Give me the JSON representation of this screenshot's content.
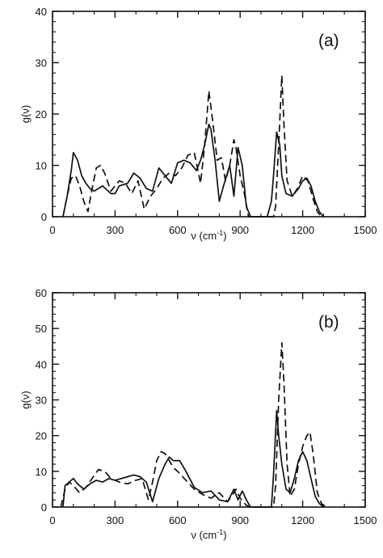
{
  "chart_data": [
    {
      "type": "line",
      "panel_label": "(a)",
      "xlabel": "ν (cm",
      "xlabel_sup": "-1",
      "xlabel_end": ")",
      "ylabel": "g(ν)",
      "xlim": [
        0,
        1500
      ],
      "ylim": [
        0,
        40
      ],
      "xticks": [
        0,
        300,
        600,
        900,
        1200,
        1500
      ],
      "yticks": [
        0,
        10,
        20,
        30,
        40
      ],
      "grid": false,
      "series": [
        {
          "style": "solid",
          "x": [
            50,
            70,
            90,
            100,
            120,
            140,
            160,
            180,
            200,
            240,
            280,
            300,
            320,
            360,
            390,
            420,
            450,
            480,
            510,
            540,
            570,
            600,
            630,
            660,
            690,
            710,
            730,
            750,
            760,
            780,
            800,
            820,
            850,
            870,
            890,
            910,
            930,
            950,
            1030,
            1050,
            1060,
            1075,
            1090,
            1100,
            1120,
            1150,
            1180,
            1200,
            1220,
            1240,
            1260,
            1280,
            1300
          ],
          "y": [
            0,
            4,
            9,
            12.5,
            11,
            8,
            6.5,
            5.5,
            5,
            6,
            4.5,
            4.5,
            6,
            6.5,
            8.5,
            7.5,
            5.5,
            5,
            9.5,
            8,
            6.5,
            10.5,
            11,
            10.5,
            9,
            11,
            14,
            18,
            17,
            11,
            3,
            6,
            10,
            4,
            13.5,
            10,
            2,
            0,
            0,
            3,
            8,
            16.5,
            14,
            8,
            4.5,
            4,
            5.5,
            7,
            7.5,
            6,
            3,
            1,
            0
          ]
        },
        {
          "style": "dashed",
          "x": [
            50,
            70,
            90,
            110,
            130,
            150,
            170,
            190,
            210,
            230,
            250,
            280,
            300,
            320,
            350,
            380,
            410,
            440,
            470,
            500,
            530,
            560,
            590,
            620,
            650,
            680,
            710,
            730,
            750,
            770,
            790,
            810,
            830,
            850,
            870,
            880,
            900,
            920,
            940,
            960,
            1040,
            1060,
            1070,
            1085,
            1100,
            1110,
            1125,
            1150,
            1175,
            1200,
            1225,
            1250,
            1270,
            1290,
            1300
          ],
          "y": [
            0,
            4,
            7.5,
            8,
            6,
            3,
            1,
            5.5,
            9.5,
            10,
            8.5,
            5,
            6,
            7,
            6.5,
            4.5,
            7,
            1.5,
            4,
            5.5,
            7.5,
            8.5,
            8,
            9.5,
            12,
            12.5,
            6.5,
            14,
            24.5,
            18,
            11,
            11.5,
            7,
            10,
            15,
            13.5,
            8,
            4.5,
            0,
            0,
            0,
            0,
            2,
            14,
            27.5,
            18,
            7,
            4,
            5.5,
            8,
            7,
            3.5,
            1,
            0,
            0
          ]
        }
      ]
    },
    {
      "type": "line",
      "panel_label": "(b)",
      "xlabel": "ν (cm",
      "xlabel_sup": "-1",
      "xlabel_end": ")",
      "ylabel": "g(ν)",
      "xlim": [
        0,
        1500
      ],
      "ylim": [
        0,
        60
      ],
      "xticks": [
        0,
        300,
        600,
        900,
        1200,
        1500
      ],
      "yticks": [
        0,
        10,
        20,
        30,
        40,
        50,
        60
      ],
      "grid": false,
      "series": [
        {
          "style": "solid",
          "x": [
            50,
            60,
            80,
            100,
            120,
            150,
            180,
            210,
            240,
            270,
            300,
            330,
            360,
            390,
            420,
            450,
            480,
            510,
            540,
            560,
            580,
            610,
            640,
            680,
            720,
            760,
            800,
            840,
            870,
            890,
            910,
            930,
            950,
            1050,
            1060,
            1075,
            1085,
            1100,
            1120,
            1140,
            1160,
            1180,
            1200,
            1220,
            1240,
            1260,
            1280,
            1300
          ],
          "y": [
            0,
            6,
            7,
            8,
            6.5,
            5,
            6.5,
            7.5,
            7,
            8,
            7.5,
            8,
            8.5,
            9,
            8.5,
            7,
            1.5,
            8,
            12,
            14,
            13,
            13,
            10,
            5.5,
            4,
            4.5,
            2,
            1.5,
            5,
            2,
            4.5,
            2,
            0,
            0,
            9,
            27,
            20,
            12,
            5,
            4,
            8,
            13,
            15.5,
            13,
            8,
            3,
            1,
            0
          ]
        },
        {
          "style": "dashed",
          "x": [
            40,
            60,
            80,
            100,
            130,
            160,
            190,
            220,
            250,
            280,
            320,
            360,
            400,
            430,
            460,
            480,
            500,
            520,
            540,
            560,
            580,
            600,
            640,
            680,
            720,
            760,
            800,
            840,
            870,
            880,
            900,
            930,
            950,
            1060,
            1070,
            1085,
            1100,
            1110,
            1125,
            1140,
            1160,
            1180,
            1200,
            1220,
            1235,
            1250,
            1270,
            1290,
            1310
          ],
          "y": [
            0,
            5,
            7,
            6,
            4,
            5.5,
            8,
            10.5,
            10,
            8,
            7,
            6.5,
            7.5,
            8,
            2,
            7,
            13,
            15.5,
            15,
            13,
            11,
            10,
            7.5,
            5,
            3.5,
            2.5,
            4,
            1.5,
            4,
            5,
            2.5,
            0.5,
            0,
            0,
            6,
            30,
            46,
            35,
            12,
            3,
            5,
            12,
            17,
            20,
            21,
            15,
            4,
            1,
            0
          ]
        }
      ]
    }
  ]
}
